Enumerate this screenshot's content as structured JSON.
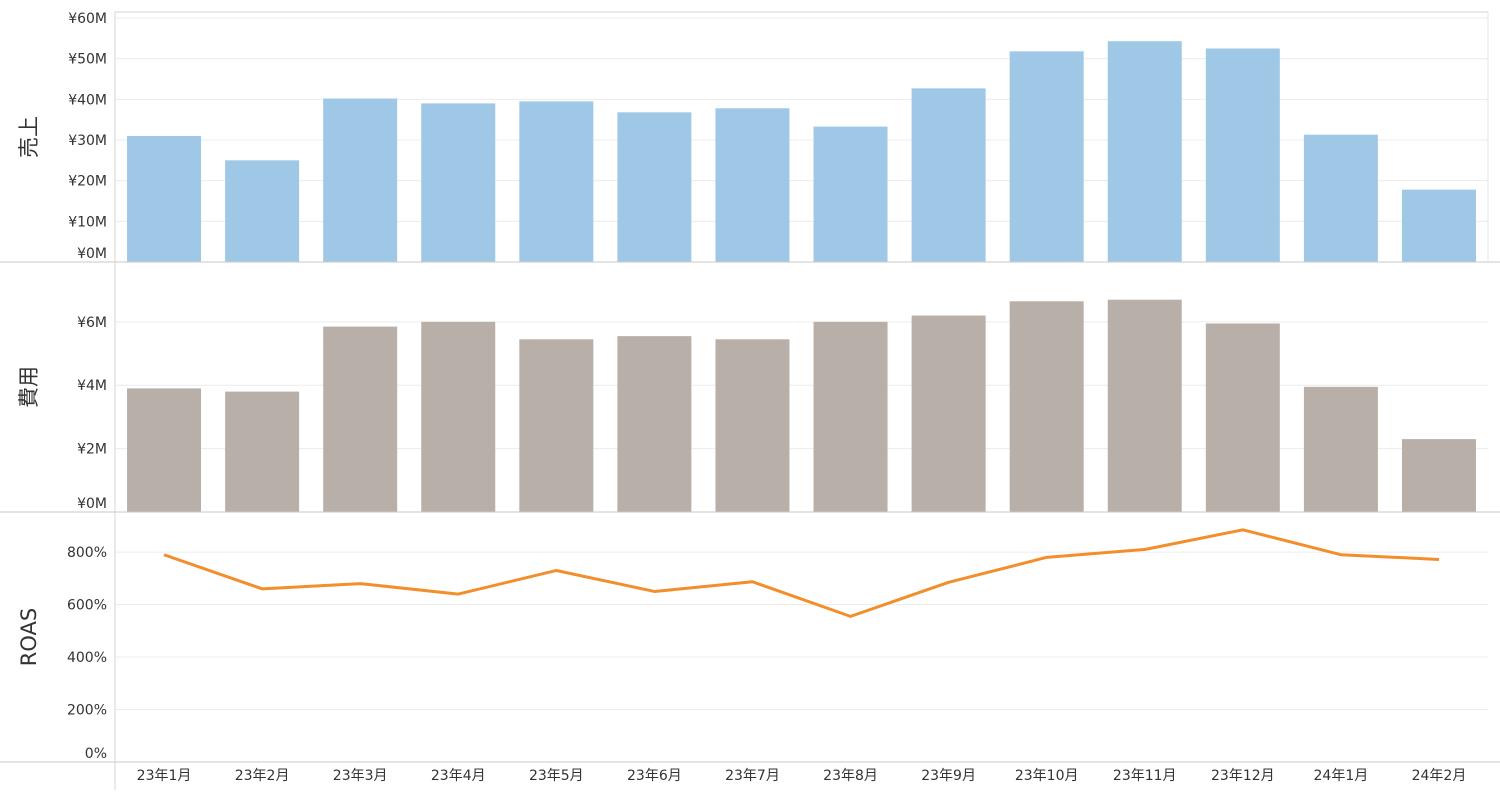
{
  "chart_data": [
    {
      "type": "bar",
      "ylabel": "売上",
      "categories": [
        "23年1月",
        "23年2月",
        "23年3月",
        "23年4月",
        "23年5月",
        "23年6月",
        "23年7月",
        "23年8月",
        "23年9月",
        "23年10月",
        "23年11月",
        "23年12月",
        "24年1月",
        "24年2月"
      ],
      "values": [
        31,
        25,
        40.2,
        39,
        39.5,
        36.8,
        37.8,
        33.3,
        42.7,
        51.8,
        54.3,
        52.5,
        31.3,
        17.8
      ],
      "ylim": [
        0,
        60
      ],
      "ticks": [
        0,
        10,
        20,
        30,
        40,
        50,
        60
      ],
      "tick_labels": [
        "¥0M",
        "¥10M",
        "¥20M",
        "¥30M",
        "¥40M",
        "¥50M",
        "¥60M"
      ],
      "color": "#9fc8e7",
      "grid": true
    },
    {
      "type": "bar",
      "ylabel": "費用",
      "categories": [
        "23年1月",
        "23年2月",
        "23年3月",
        "23年4月",
        "23年5月",
        "23年6月",
        "23年7月",
        "23年8月",
        "23年9月",
        "23年10月",
        "23年11月",
        "23年12月",
        "24年1月",
        "24年2月"
      ],
      "values": [
        3.9,
        3.8,
        5.85,
        6.0,
        5.45,
        5.55,
        5.45,
        6.0,
        6.2,
        6.65,
        6.7,
        5.95,
        3.95,
        2.3
      ],
      "ylim": [
        0,
        7.7
      ],
      "ticks": [
        0,
        2,
        4,
        6
      ],
      "tick_labels": [
        "¥0M",
        "¥2M",
        "¥4M",
        "¥6M"
      ],
      "color": "#b9afa9",
      "grid": true
    },
    {
      "type": "line",
      "ylabel": "ROAS",
      "categories": [
        "23年1月",
        "23年2月",
        "23年3月",
        "23年4月",
        "23年5月",
        "23年6月",
        "23年7月",
        "23年8月",
        "23年9月",
        "23年10月",
        "23年11月",
        "23年12月",
        "24年1月",
        "24年2月"
      ],
      "values": [
        790,
        660,
        680,
        640,
        730,
        650,
        687,
        555,
        685,
        780,
        810,
        885,
        790,
        772
      ],
      "ylim": [
        0,
        930
      ],
      "ticks": [
        0,
        200,
        400,
        600,
        800
      ],
      "tick_labels": [
        "0%",
        "200%",
        "400%",
        "600%",
        "800%"
      ],
      "color": "#f28e2b",
      "grid": true
    }
  ]
}
